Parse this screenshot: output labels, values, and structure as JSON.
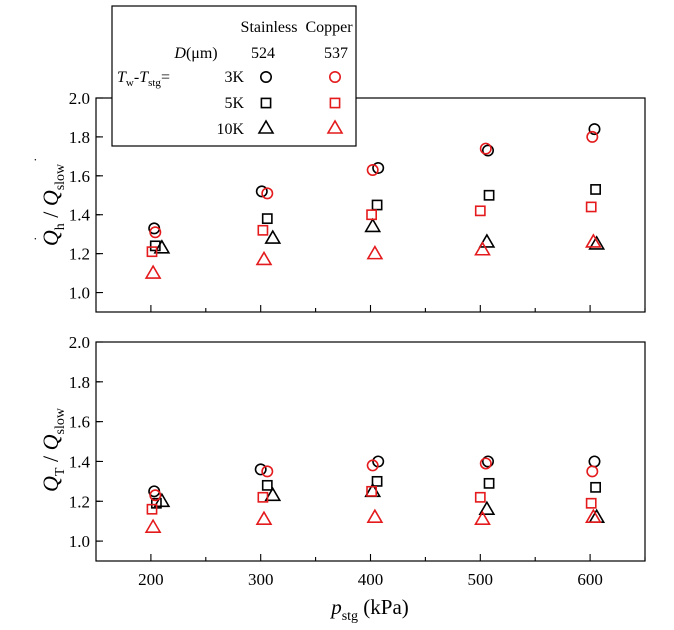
{
  "chart_data": [
    {
      "type": "scatter",
      "panel": "top",
      "ylabel_main": "Q",
      "ylabel_main_sub": "h",
      "ylabel_sep": " / ",
      "ylabel_den": "Q",
      "ylabel_den_sub": "slow",
      "xlim": [
        150,
        650
      ],
      "ylim": [
        0.9,
        2.0
      ],
      "yticks": [
        "1.0",
        "1.2",
        "1.4",
        "1.6",
        "1.8",
        "2.0"
      ],
      "series": [
        {
          "material": "stainless",
          "marker": "circle",
          "color": "#000000",
          "points": [
            [
              203,
              1.33
            ],
            [
              301,
              1.52
            ],
            [
              407,
              1.64
            ],
            [
              507,
              1.73
            ],
            [
              604,
              1.84
            ]
          ]
        },
        {
          "material": "stainless",
          "marker": "square",
          "color": "#000000",
          "points": [
            [
              204,
              1.24
            ],
            [
              306,
              1.38
            ],
            [
              406,
              1.45
            ],
            [
              508,
              1.5
            ],
            [
              605,
              1.53
            ]
          ]
        },
        {
          "material": "stainless",
          "marker": "triangle",
          "color": "#000000",
          "points": [
            [
              210,
              1.23
            ],
            [
              311,
              1.28
            ],
            [
              402,
              1.34
            ],
            [
              506,
              1.26
            ],
            [
              606,
              1.25
            ]
          ]
        },
        {
          "material": "copper",
          "marker": "circle",
          "color": "#e41a1c",
          "points": [
            [
              204,
              1.31
            ],
            [
              306,
              1.51
            ],
            [
              402,
              1.63
            ],
            [
              505,
              1.74
            ],
            [
              602,
              1.8
            ]
          ]
        },
        {
          "material": "copper",
          "marker": "square",
          "color": "#e41a1c",
          "points": [
            [
              201,
              1.21
            ],
            [
              302,
              1.32
            ],
            [
              401,
              1.4
            ],
            [
              500,
              1.42
            ],
            [
              601,
              1.44
            ]
          ]
        },
        {
          "material": "copper",
          "marker": "triangle",
          "color": "#e41a1c",
          "points": [
            [
              202,
              1.1
            ],
            [
              303,
              1.17
            ],
            [
              404,
              1.2
            ],
            [
              502,
              1.22
            ],
            [
              603,
              1.26
            ]
          ]
        }
      ]
    },
    {
      "type": "scatter",
      "panel": "bottom",
      "ylabel_main": "Q",
      "ylabel_main_sub": "T",
      "ylabel_sep": " / ",
      "ylabel_den": "Q",
      "ylabel_den_sub": "slow",
      "xlabel_main": "p",
      "xlabel_sub": "stg",
      "xlabel_unit": " (kPa)",
      "xlim": [
        150,
        650
      ],
      "ylim": [
        0.9,
        2.0
      ],
      "xticks": [
        "200",
        "300",
        "400",
        "500",
        "600"
      ],
      "yticks": [
        "1.0",
        "1.2",
        "1.4",
        "1.6",
        "1.8",
        "2.0"
      ],
      "series": [
        {
          "material": "stainless",
          "marker": "circle",
          "color": "#000000",
          "points": [
            [
              203,
              1.25
            ],
            [
              300,
              1.36
            ],
            [
              407,
              1.4
            ],
            [
              507,
              1.4
            ],
            [
              604,
              1.4
            ]
          ]
        },
        {
          "material": "stainless",
          "marker": "square",
          "color": "#000000",
          "points": [
            [
              205,
              1.19
            ],
            [
              306,
              1.28
            ],
            [
              406,
              1.3
            ],
            [
              508,
              1.29
            ],
            [
              605,
              1.27
            ]
          ]
        },
        {
          "material": "stainless",
          "marker": "triangle",
          "color": "#000000",
          "points": [
            [
              210,
              1.2
            ],
            [
              311,
              1.23
            ],
            [
              402,
              1.25
            ],
            [
              506,
              1.16
            ],
            [
              606,
              1.12
            ]
          ]
        },
        {
          "material": "copper",
          "marker": "circle",
          "color": "#e41a1c",
          "points": [
            [
              204,
              1.23
            ],
            [
              306,
              1.35
            ],
            [
              402,
              1.38
            ],
            [
              505,
              1.39
            ],
            [
              602,
              1.35
            ]
          ]
        },
        {
          "material": "copper",
          "marker": "square",
          "color": "#e41a1c",
          "points": [
            [
              201,
              1.16
            ],
            [
              302,
              1.22
            ],
            [
              401,
              1.25
            ],
            [
              500,
              1.22
            ],
            [
              601,
              1.19
            ]
          ]
        },
        {
          "material": "copper",
          "marker": "triangle",
          "color": "#e41a1c",
          "points": [
            [
              202,
              1.07
            ],
            [
              303,
              1.11
            ],
            [
              404,
              1.12
            ],
            [
              502,
              1.11
            ],
            [
              603,
              1.12
            ]
          ]
        }
      ]
    }
  ],
  "legend": {
    "col_stainless": "Stainless",
    "col_copper": "Copper",
    "d_label_main": "D",
    "d_label_unit": "(μm)",
    "d_stainless": "524",
    "d_copper": "537",
    "t_label_w": "T",
    "t_label_w_sub": "w",
    "t_label_dash": "-",
    "t_label_stg": "T",
    "t_label_stg_sub": "stg",
    "t_label_eq": "=",
    "rows": [
      {
        "label": "3K",
        "marker": "circle"
      },
      {
        "label": "5K",
        "marker": "square"
      },
      {
        "label": "10K",
        "marker": "triangle"
      }
    ]
  },
  "colors": {
    "stainless": "#000000",
    "copper": "#e41a1c"
  }
}
